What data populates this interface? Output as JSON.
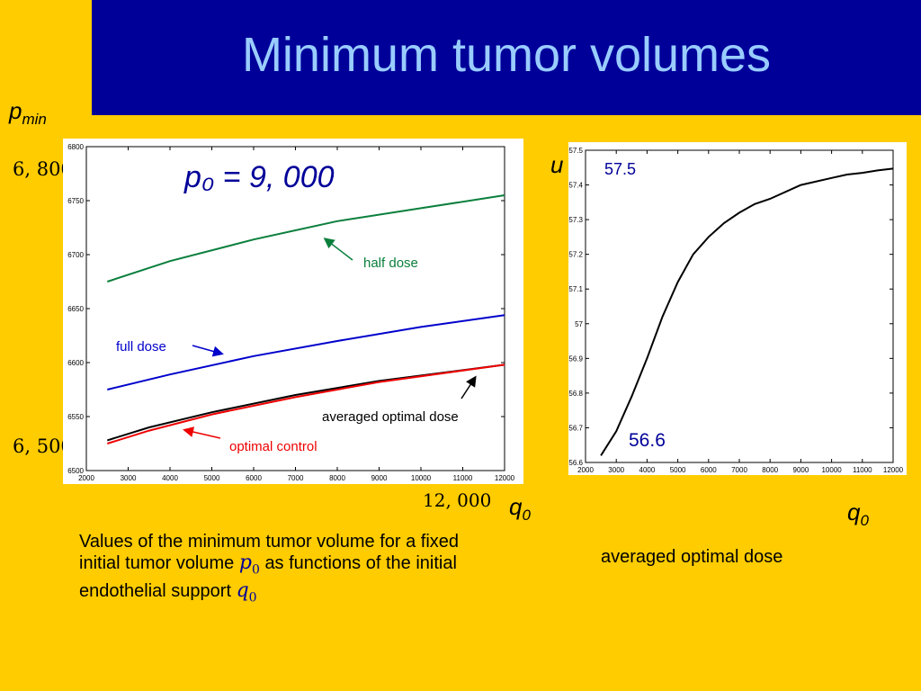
{
  "slide": {
    "title": "Minimum tumor volumes",
    "caption_part1": "Values of the minimum tumor volume for a fixed initial tumor volume",
    "caption_math_p0": "p",
    "caption_part2": "as functions of the initial endothelial support",
    "caption_math_q0": "q",
    "subscript_zero": "0",
    "colors": {
      "title_bar": "#000099",
      "title_text": "#99ccff",
      "background": "#ffcc00",
      "math_blue": "#000099"
    }
  },
  "left_chart_labels": {
    "y_var_main": "p",
    "y_var_sub": "min",
    "x_var_main": "q",
    "x_var_sub": "0",
    "y_top_annotation": "6, 800",
    "y_bottom_annotation": "6, 500",
    "x_right_annotation": "12, 000",
    "equation": "p₀ = 9, 000"
  },
  "right_chart_labels": {
    "y_var": "u",
    "x_var_main": "q",
    "x_var_sub": "0",
    "top_annotation": "57.5",
    "bottom_annotation": "56.6",
    "caption": "averaged optimal dose"
  },
  "chart_data": [
    {
      "type": "line",
      "xlim": [
        2000,
        12000
      ],
      "ylim": [
        6500,
        6800
      ],
      "xticks": [
        2000,
        3000,
        4000,
        5000,
        6000,
        7000,
        8000,
        9000,
        10000,
        11000,
        12000
      ],
      "yticks": [
        6500,
        6550,
        6600,
        6650,
        6700,
        6750,
        6800
      ],
      "grid": false,
      "series": [
        {
          "name": "half dose",
          "color": "#0a7f3c",
          "x": [
            2500,
            4000,
            6000,
            8000,
            10000,
            12000
          ],
          "y": [
            6675,
            6694,
            6714,
            6731,
            6743,
            6755
          ]
        },
        {
          "name": "full dose",
          "color": "#0000cc",
          "x": [
            2500,
            4000,
            6000,
            8000,
            10000,
            12000
          ],
          "y": [
            6575,
            6589,
            6606,
            6620,
            6633,
            6644
          ]
        },
        {
          "name": "averaged optimal dose",
          "color": "#000000",
          "x": [
            2500,
            3500,
            5000,
            7000,
            9000,
            12000
          ],
          "y": [
            6528,
            6540,
            6554,
            6570,
            6583,
            6598
          ]
        },
        {
          "name": "optimal control",
          "color": "#ee0000",
          "x": [
            2500,
            3500,
            5000,
            7000,
            9000,
            12000
          ],
          "y": [
            6525,
            6537,
            6552,
            6568,
            6582,
            6598
          ]
        }
      ],
      "annotations": [
        "half dose",
        "full dose",
        "averaged optimal dose",
        "optimal control"
      ]
    },
    {
      "type": "line",
      "xlim": [
        2000,
        12000
      ],
      "ylim": [
        56.6,
        57.5
      ],
      "xticks": [
        2000,
        3000,
        4000,
        5000,
        6000,
        7000,
        8000,
        9000,
        10000,
        11000,
        12000
      ],
      "yticks": [
        56.6,
        56.7,
        56.8,
        56.9,
        57,
        57.1,
        57.2,
        57.3,
        57.4,
        57.5
      ],
      "grid": false,
      "series": [
        {
          "color": "#000000",
          "x": [
            2500,
            3000,
            3500,
            4000,
            4500,
            5000,
            5500,
            6000,
            6500,
            7000,
            7500,
            8000,
            9000,
            10000,
            10500,
            11000,
            11500,
            12000
          ],
          "y": [
            56.62,
            56.69,
            56.79,
            56.9,
            57.02,
            57.12,
            57.2,
            57.25,
            57.29,
            57.32,
            57.345,
            57.36,
            57.4,
            57.42,
            57.43,
            57.435,
            57.442,
            57.447
          ]
        }
      ]
    }
  ]
}
